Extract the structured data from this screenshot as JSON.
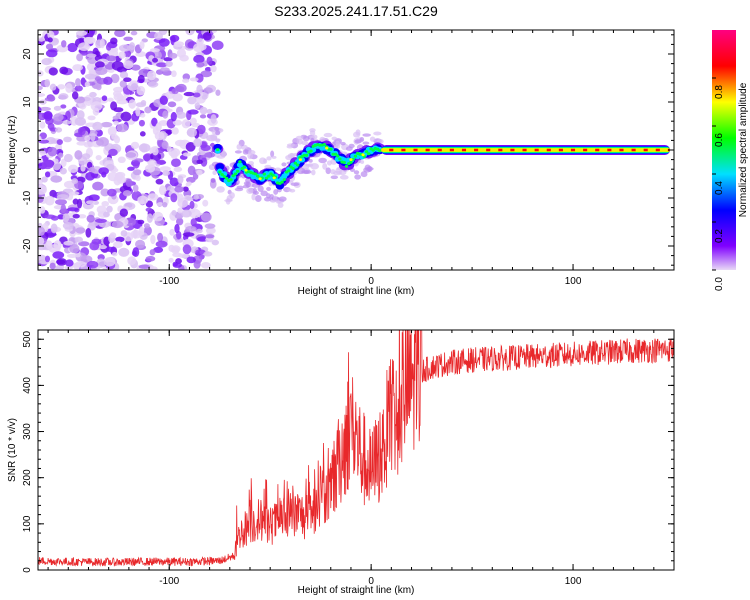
{
  "chart_data": [
    {
      "type": "heatmap",
      "title": "S233.2025.241.17.51.C29",
      "xlabel": "Height of straight line (km)",
      "ylabel": "Frequency (Hz)",
      "xlim": [
        -165,
        150
      ],
      "ylim": [
        -25,
        25
      ],
      "xticks": [
        -100,
        0,
        100
      ],
      "yticks": [
        -20,
        -10,
        0,
        10,
        20
      ],
      "x_tick_labels": [
        "-100",
        "0",
        "100"
      ],
      "y_tick_labels": [
        "-20",
        "-10",
        "0",
        "10",
        "20"
      ],
      "description_points": {
        "noise_region_km": [
          -165,
          -78
        ],
        "transition_region_km": [
          -78,
          5
        ],
        "line_region_km": [
          5,
          148
        ],
        "line_frequency_hz": 0,
        "transition_track": [
          [
            -75,
            -4
          ],
          [
            -70,
            -7
          ],
          [
            -65,
            -3
          ],
          [
            -60,
            -5
          ],
          [
            -55,
            -6
          ],
          [
            -50,
            -5
          ],
          [
            -45,
            -7
          ],
          [
            -40,
            -4
          ],
          [
            -35,
            -2
          ],
          [
            -30,
            0
          ],
          [
            -25,
            1
          ],
          [
            -20,
            0
          ],
          [
            -15,
            -2
          ],
          [
            -12,
            -3
          ],
          [
            -8,
            -1
          ],
          [
            -4,
            -1
          ],
          [
            0,
            0
          ],
          [
            5,
            0
          ]
        ]
      },
      "colorbar": {
        "label": "Normalized spectral amplitude",
        "range": [
          0,
          1
        ],
        "ticks": [
          0.0,
          0.2,
          0.4,
          0.6,
          0.8
        ],
        "tick_labels": [
          "0.0",
          "0.2",
          "0.4",
          "0.6",
          "0.8"
        ],
        "colors": [
          "#e8d8f6",
          "#8000ff",
          "#0000ff",
          "#00e0ff",
          "#00ff00",
          "#ffff00",
          "#ff0000",
          "#ff0080"
        ]
      }
    },
    {
      "type": "line",
      "title": "",
      "xlabel": "Height of straight line (km)",
      "ylabel": "SNR (10 * v/v)",
      "xlim": [
        -165,
        150
      ],
      "ylim": [
        0,
        520
      ],
      "xticks": [
        -100,
        0,
        100
      ],
      "yticks": [
        0,
        100,
        200,
        300,
        400,
        500
      ],
      "x_tick_labels": [
        "-100",
        "0",
        "100"
      ],
      "y_tick_labels": [
        "0",
        "100",
        "200",
        "300",
        "400",
        "500"
      ],
      "line_color": "#e8282b",
      "series": [
        {
          "name": "SNR",
          "x": [
            -165,
            -150,
            -130,
            -110,
            -90,
            -75,
            -68,
            -65,
            -60,
            -55,
            -50,
            -45,
            -40,
            -35,
            -30,
            -25,
            -20,
            -15,
            -10,
            -5,
            0,
            5,
            10,
            15,
            20,
            25,
            30,
            40,
            50,
            70,
            90,
            110,
            130,
            150
          ],
          "values": [
            20,
            18,
            17,
            18,
            18,
            20,
            30,
            80,
            100,
            110,
            95,
            110,
            115,
            120,
            110,
            170,
            160,
            250,
            320,
            250,
            210,
            260,
            330,
            380,
            410,
            430,
            440,
            450,
            455,
            460,
            465,
            470,
            475,
            478
          ]
        }
      ]
    }
  ]
}
